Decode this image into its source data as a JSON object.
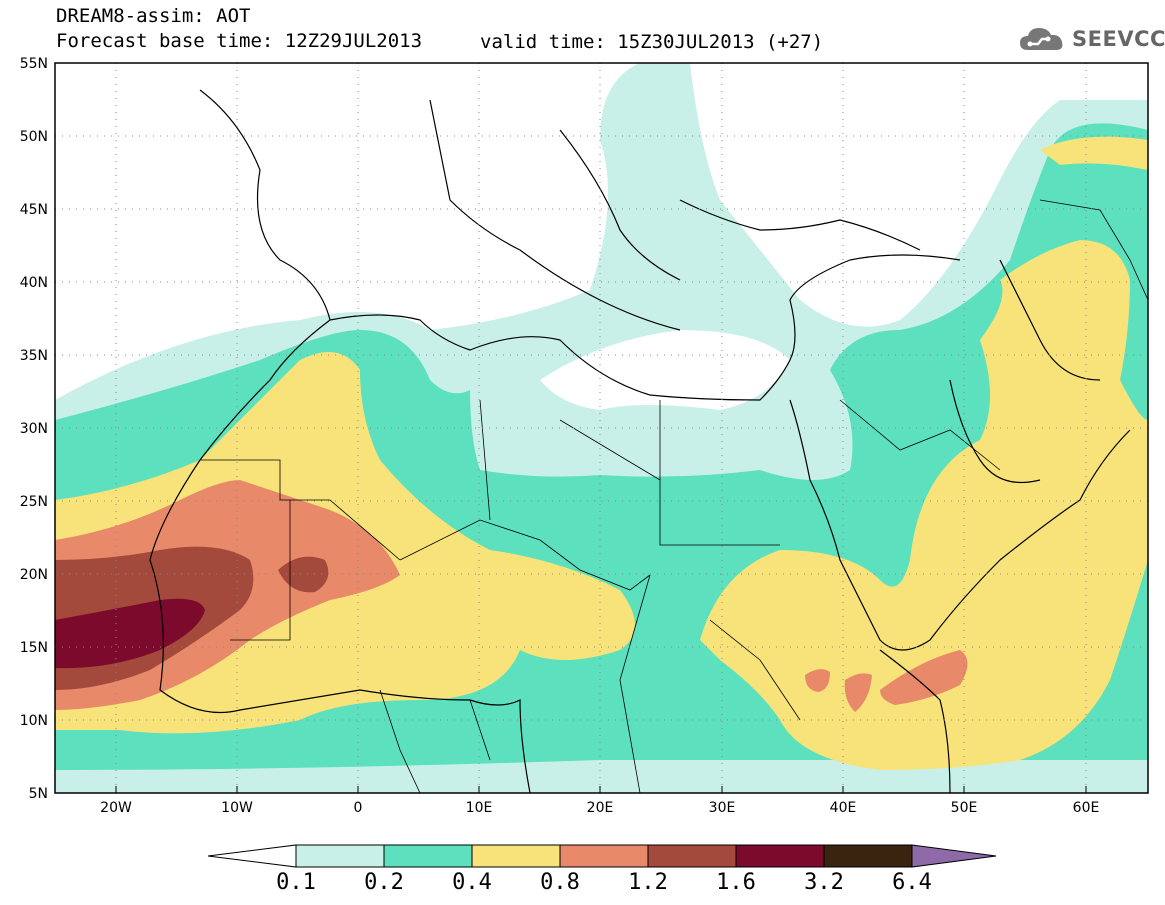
{
  "header": {
    "title": "DREAM8-assim: AOT",
    "base_time": "Forecast base time: 12Z29JUL2013",
    "valid_time": "valid time: 15Z30JUL2013 (+27)",
    "logo_text": "SEEVCCC"
  },
  "map": {
    "variable": "AOT",
    "lat_range": [
      5,
      55
    ],
    "lon_range": [
      -25,
      65
    ],
    "lat_labels": [
      "55N",
      "50N",
      "45N",
      "40N",
      "35N",
      "30N",
      "25N",
      "20N",
      "15N",
      "10N",
      "5N"
    ],
    "lon_labels": [
      "20W",
      "10W",
      "0",
      "10E",
      "20E",
      "30E",
      "40E",
      "50E",
      "60E"
    ],
    "grid": "dotted",
    "max_region": "West Africa coast near 15N 20W (AOT 1.6-3.2)"
  },
  "colorbar": {
    "levels": [
      "0.1",
      "0.2",
      "0.4",
      "0.8",
      "1.2",
      "1.6",
      "3.2",
      "6.4"
    ],
    "colors": {
      "below": "#ffffff",
      "c1": "#c8f0e8",
      "c2": "#5ce0bd",
      "c3": "#f7e37a",
      "c4": "#e8896a",
      "c5": "#a44a3c",
      "c6": "#7c0a2c",
      "c7": "#3a2410",
      "above": "#8e6ba8"
    }
  }
}
